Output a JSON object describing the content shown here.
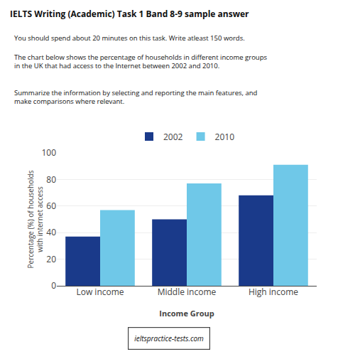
{
  "chart_data": {
    "type": "bar",
    "title": "IELTS Writing (Academic) Task 1 Band 8-9 sample answer",
    "annotations": [
      "You should spend about 20 minutes on this task. Write atleast 150 words.",
      "The chart below shows the percentage of households in different income groups\nin the UK that had access to the Internet between 2002 and 2010.",
      "Summarize the information by selecting and reporting the main features, and\nmake comparisons where relevant.",
      "ieltspractice-tests.com"
    ],
    "categories": [
      "Low income",
      "Middle income",
      "High income"
    ],
    "series": [
      {
        "name": "2002",
        "color": "#1a3a8a",
        "values": [
          37,
          50,
          68
        ]
      },
      {
        "name": "2010",
        "color": "#6fc8e8",
        "values": [
          57,
          77,
          91
        ]
      }
    ],
    "xlabel": "Income Group",
    "ylabel": "Percentage (%) of households\nwith internet access",
    "ylim": [
      0,
      100
    ],
    "yticks": [
      0,
      20,
      40,
      60,
      80,
      100
    ],
    "grid": true,
    "legend": "top"
  }
}
